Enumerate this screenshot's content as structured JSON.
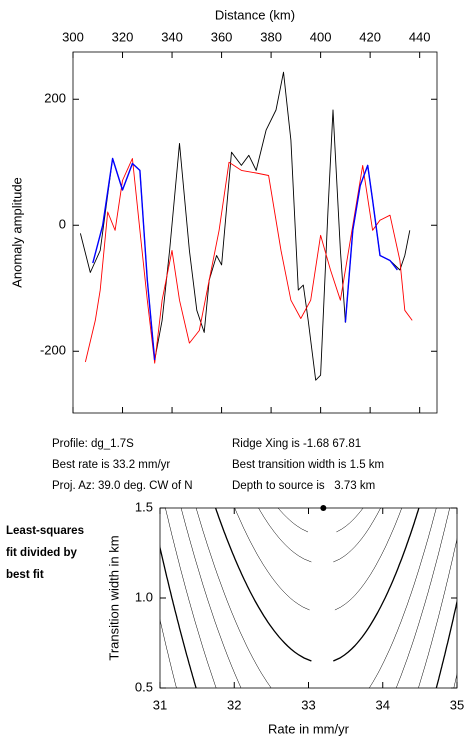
{
  "chart_data": [
    {
      "type": "line",
      "x_label": "Distance (km)",
      "y_label": "Anomaly amplitude",
      "xlim": [
        300,
        447
      ],
      "xticks": [
        300,
        320,
        340,
        360,
        380,
        400,
        420,
        440
      ],
      "ylim": [
        -298,
        275
      ],
      "yticks": [
        -200,
        0,
        200
      ],
      "series": [
        {
          "color": "#000000",
          "x": [
            303,
            307,
            311,
            316,
            320,
            324,
            327,
            330,
            333,
            336,
            339,
            343,
            347,
            350,
            353,
            355,
            358,
            360,
            364,
            368,
            371,
            374,
            378,
            382,
            385,
            388,
            391,
            393,
            395,
            398,
            400,
            403,
            405,
            408,
            410,
            413,
            416,
            419,
            421,
            424,
            428,
            432,
            434,
            436
          ],
          "values": [
            -13,
            -75,
            -40,
            106,
            56,
            98,
            87,
            -87,
            -214,
            -151,
            -40,
            130,
            -40,
            -135,
            -170,
            -87,
            -48,
            -63,
            116,
            95,
            111,
            87,
            151,
            183,
            243,
            135,
            -103,
            -95,
            -151,
            -246,
            -238,
            24,
            183,
            -40,
            -154,
            -8,
            63,
            95,
            40,
            -48,
            -56,
            -71,
            -48,
            -8
          ]
        },
        {
          "color": "#ff0000",
          "x": [
            305,
            309,
            311,
            314,
            317,
            320,
            324,
            327,
            330,
            333,
            336,
            340,
            343,
            347,
            351,
            355,
            359,
            363,
            368,
            374,
            379,
            384,
            388,
            392,
            396,
            400,
            404,
            408,
            412,
            417,
            421,
            424,
            428,
            432,
            434,
            437
          ],
          "values": [
            -217,
            -151,
            -103,
            21,
            -8,
            71,
            106,
            -8,
            -119,
            -219,
            -119,
            -40,
            -119,
            -187,
            -167,
            -87,
            -8,
            100,
            87,
            83,
            79,
            -40,
            -119,
            -148,
            -119,
            -16,
            -71,
            -119,
            -24,
            95,
            -8,
            8,
            16,
            -56,
            -135,
            -151
          ]
        },
        {
          "color": "#0000ff",
          "x": [
            308,
            312,
            316,
            320,
            324,
            327,
            330,
            333,
            371,
            410,
            413,
            416,
            419,
            421,
            424,
            428,
            431
          ],
          "values": [
            -60,
            0,
            106,
            56,
            98,
            87,
            -87,
            -214,
            null,
            -154,
            -8,
            63,
            95,
            40,
            -48,
            -56,
            -71
          ]
        }
      ]
    },
    {
      "type": "contour",
      "x_label": "Rate in mm/yr",
      "y_label": "Transition width in km",
      "xlim": [
        31,
        35
      ],
      "xticks": [
        31,
        32,
        33,
        34,
        35
      ],
      "ylim": [
        0.5,
        1.5
      ],
      "yticks": [
        0.5,
        {
          "value": 1,
          "label": "1.0"
        },
        1.5
      ],
      "best_point": {
        "x": 33.2,
        "y": 1.5
      }
    }
  ],
  "info": {
    "profile": "Profile: dg_1.7S",
    "best_rate": "Best rate is 33.2 mm/yr",
    "proj_az": "Proj. Az: 39.0 deg. CW of N",
    "ridge_xing": "Ridge Xing is -1.68 67.81",
    "best_width": "Best transition width is 1.5 km",
    "depth": "Depth to source is   3.73 km"
  },
  "sidebar_label": [
    "Least-squares",
    "fit divided by",
    "best fit"
  ]
}
